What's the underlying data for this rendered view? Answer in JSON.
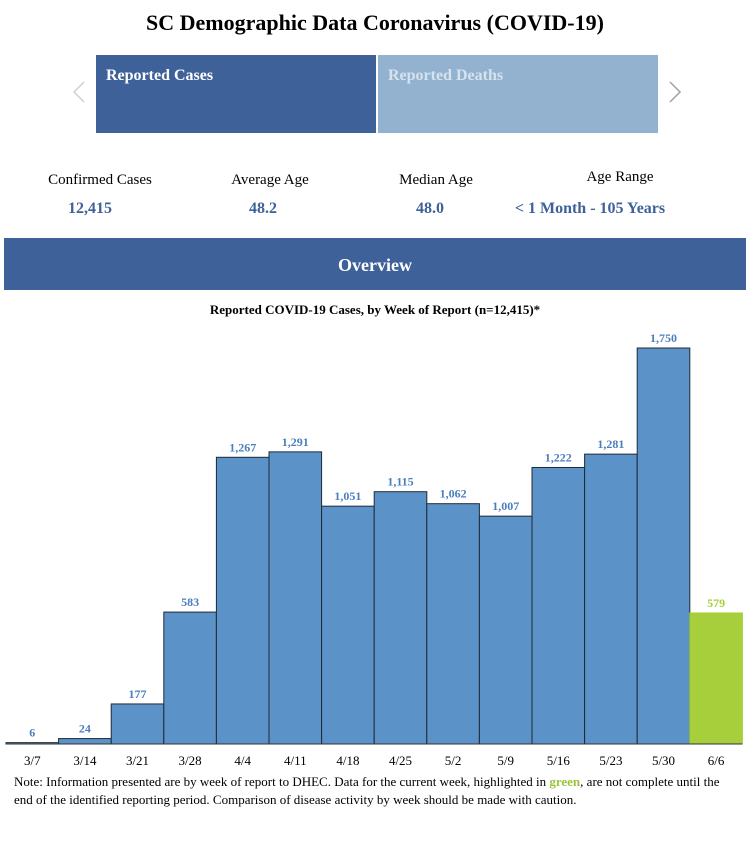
{
  "page": {
    "title": "SC Demographic Data Coronavirus (COVID-19)"
  },
  "tabs": [
    {
      "label": "Reported Cases",
      "active": true
    },
    {
      "label": "Reported Deaths",
      "active": false
    }
  ],
  "stats": [
    {
      "label": "Confirmed Cases",
      "value": "12,415"
    },
    {
      "label": "Average Age",
      "value": "48.2"
    },
    {
      "label": "Median Age",
      "value": "48.0"
    },
    {
      "label": "Age Range",
      "value": "< 1 Month - 105 Years"
    }
  ],
  "overview": {
    "label": "Overview"
  },
  "colors": {
    "primary": "#3f6199",
    "bar": "#5b92c8",
    "highlight": "#a6cf3b",
    "value_label": "#4a7ebd"
  },
  "chart_data": {
    "type": "bar",
    "title": "Reported COVID-19 Cases, by Week of Report (n=12,415)*",
    "categories": [
      "3/7",
      "3/14",
      "3/21",
      "3/28",
      "4/4",
      "4/11",
      "4/18",
      "4/25",
      "5/2",
      "5/9",
      "5/16",
      "5/23",
      "5/30",
      "6/6"
    ],
    "values": [
      6,
      24,
      177,
      583,
      1267,
      1291,
      1051,
      1115,
      1062,
      1007,
      1222,
      1281,
      1750,
      579
    ],
    "value_labels": [
      "6",
      "24",
      "177",
      "583",
      "1,267",
      "1,291",
      "1,051",
      "1,115",
      "1,062",
      "1,007",
      "1,222",
      "1,281",
      "1,750",
      "579"
    ],
    "highlighted_index": 13,
    "ylim": [
      0,
      1750
    ],
    "xlabel": "",
    "ylabel": ""
  },
  "note": {
    "before": "Note: Information presented are by week of report to DHEC. Data for the current week, highlighted in ",
    "highlight": "green",
    "after": ", are not complete until the end of the identified reporting period. Comparison of disease activity by week should be made with caution."
  }
}
